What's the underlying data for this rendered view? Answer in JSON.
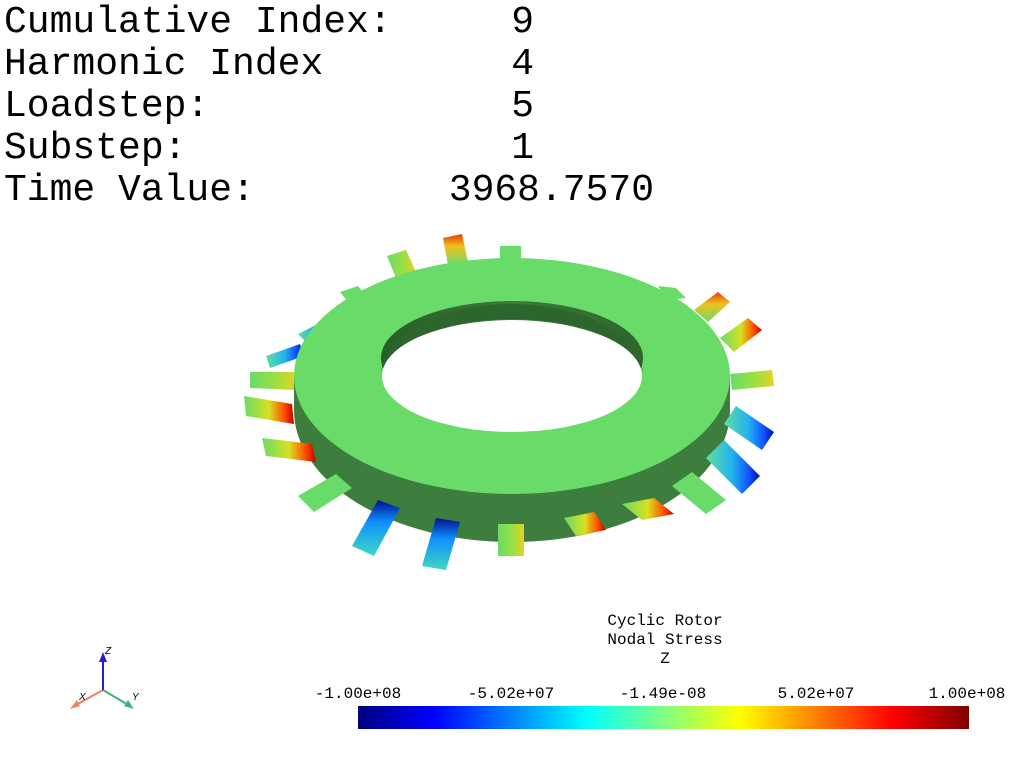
{
  "info": {
    "cumulative_index_label": "Cumulative Index:",
    "cumulative_index_value": "9",
    "harmonic_index_label": "Harmonic Index",
    "harmonic_index_value": "4",
    "loadstep_label": "Loadstep:",
    "loadstep_value": "5",
    "substep_label": "Substep:",
    "substep_value": "1",
    "time_value_label": "Time Value:",
    "time_value_value": "3968.7570"
  },
  "scalar_bar": {
    "title_line1": "Cyclic Rotor",
    "title_line2": "Nodal Stress",
    "title_line3": "Z",
    "ticks": [
      "-1.00e+08",
      "-5.02e+07",
      "-1.49e-08",
      "5.02e+07",
      "1.00e+08"
    ],
    "min": -100000000,
    "max": 100000000,
    "colormap": [
      "#00007f",
      "#0000ff",
      "#0080ff",
      "#00ffff",
      "#80ff80",
      "#ffff00",
      "#ff8000",
      "#ff0000",
      "#7f0000"
    ]
  },
  "axes": {
    "x_label": "X",
    "y_label": "Y",
    "z_label": "Z",
    "x_color": "#f08060",
    "y_color": "#40b080",
    "z_color": "#2020d0"
  },
  "model": {
    "disk_color": "#69db69",
    "disk_side_color": "#3a7a3a",
    "blade_count": 24
  }
}
